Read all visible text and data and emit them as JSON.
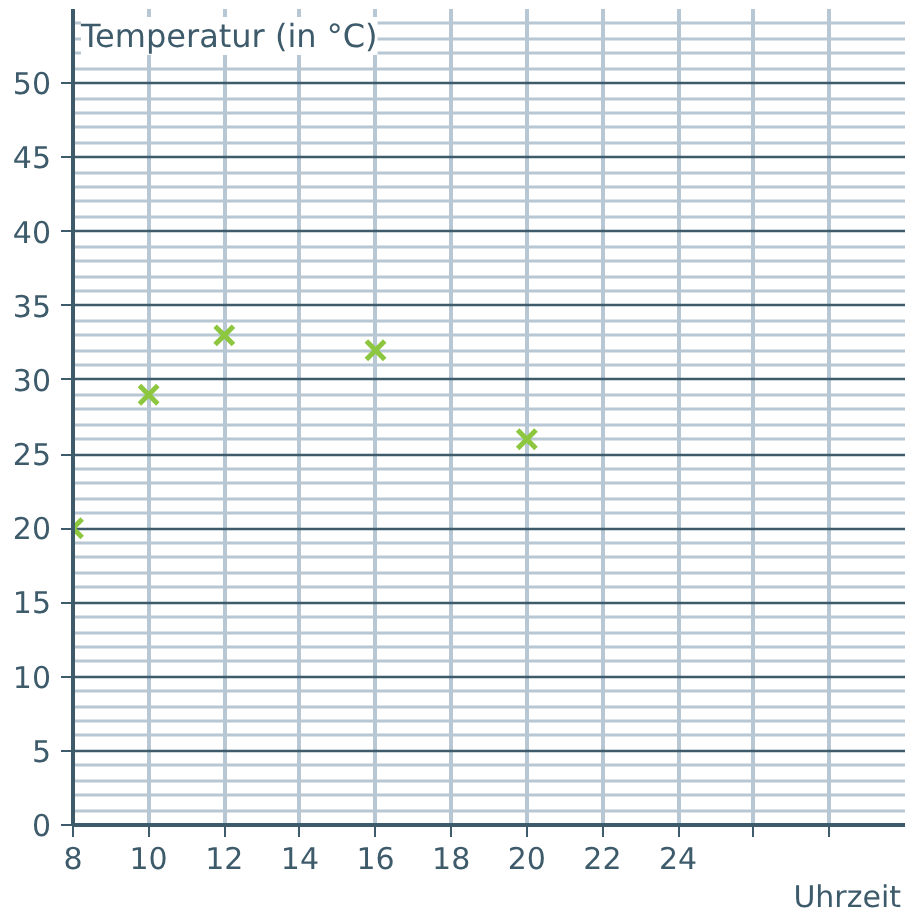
{
  "chart_data": {
    "type": "scatter",
    "xlabel": "Uhrzeit",
    "ylabel": "Temperatur (in °C)",
    "x": [
      8,
      10,
      12,
      16,
      20
    ],
    "series": [
      {
        "color": "#8dc63f",
        "values": [
          20,
          29,
          33,
          32,
          26
        ]
      }
    ],
    "marker": "cross",
    "xlim": [
      8,
      30
    ],
    "ylim": [
      0,
      55
    ],
    "xticks": [
      8,
      10,
      12,
      14,
      16,
      18,
      20,
      22,
      24,
      {
        "value": 26,
        "label": null
      },
      {
        "value": 28,
        "label": null
      }
    ],
    "yticks": [
      0,
      5,
      10,
      15,
      20,
      25,
      30,
      35,
      40,
      45,
      50
    ],
    "grid": true
  }
}
